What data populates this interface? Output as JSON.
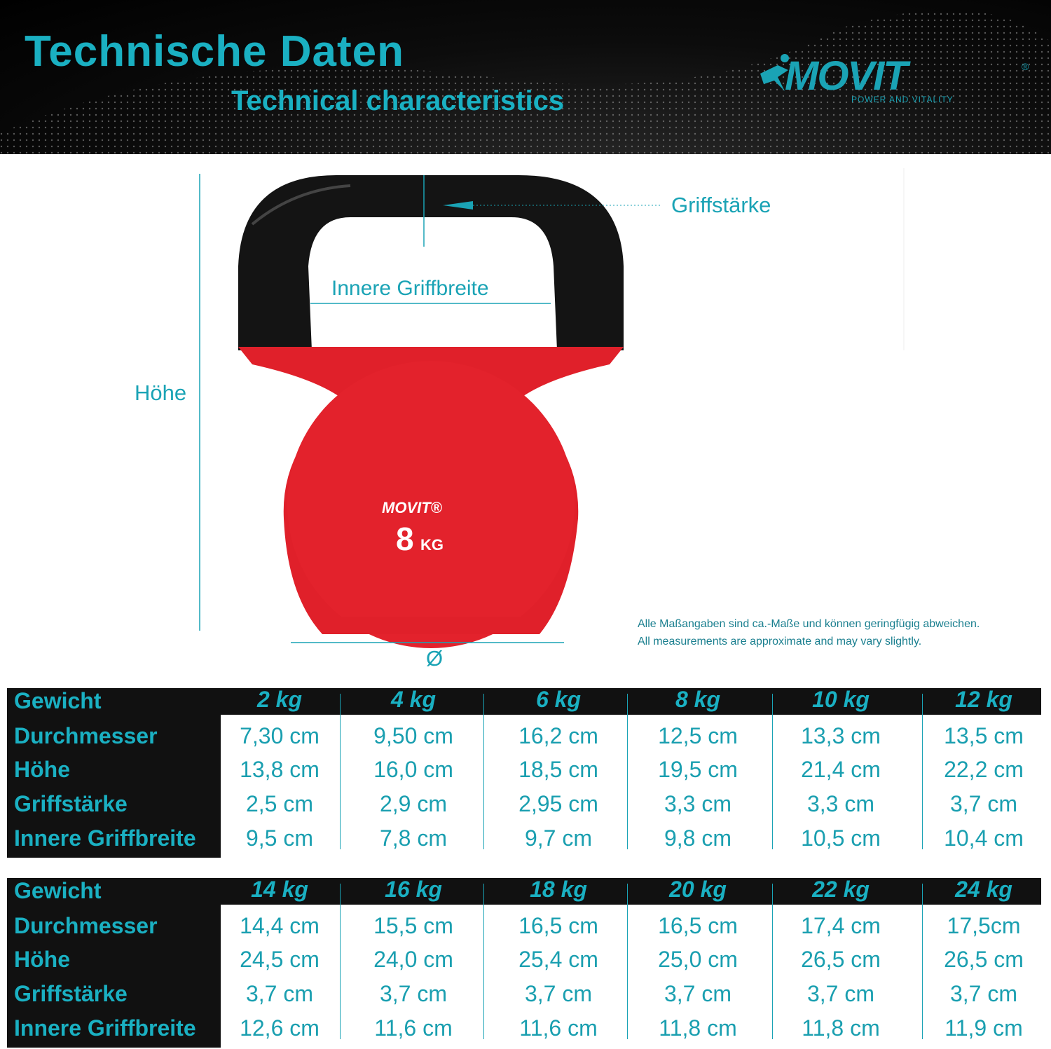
{
  "header": {
    "title_de": "Technische Daten",
    "title_en": "Technical characteristics",
    "logo": {
      "name": "MOVIT",
      "registered": "®",
      "tagline": "POWER AND VITALITY"
    }
  },
  "diagram": {
    "grip_thickness": "Griffstärke",
    "inner_grip_width": "Innere Griffbreite",
    "height": "Höhe",
    "diameter": "Ø",
    "kettlebell_brand": "MOVIT®",
    "kettlebell_weight": "8",
    "kettlebell_unit": "KG"
  },
  "notes": {
    "de": "Alle Maßangaben sind ca.-Maße und können geringfügig abweichen.",
    "en": "All measurements are approximate and may vary slightly."
  },
  "colors": {
    "accent": "#1aa3b5",
    "kettlebell_red": "#e0202a",
    "handle": "#111111"
  },
  "tables": [
    {
      "row_labels": [
        "Gewicht",
        "Durchmesser",
        "Höhe",
        "Griffstärke",
        "Innere Griffbreite"
      ],
      "weights": [
        "2 kg",
        "4 kg",
        "6 kg",
        "8 kg",
        "10 kg",
        "12 kg"
      ],
      "rows": [
        [
          "7,30 cm",
          "9,50 cm",
          "16,2 cm",
          "12,5 cm",
          "13,3 cm",
          "13,5 cm"
        ],
        [
          "13,8 cm",
          "16,0 cm",
          "18,5 cm",
          "19,5 cm",
          "21,4 cm",
          "22,2 cm"
        ],
        [
          "2,5 cm",
          "2,9 cm",
          "2,95 cm",
          "3,3 cm",
          "3,3 cm",
          "3,7 cm"
        ],
        [
          "9,5 cm",
          "7,8 cm",
          "9,7 cm",
          "9,8 cm",
          "10,5 cm",
          "10,4 cm"
        ]
      ]
    },
    {
      "row_labels": [
        "Gewicht",
        "Durchmesser",
        "Höhe",
        "Griffstärke",
        "Innere Griffbreite"
      ],
      "weights": [
        "14 kg",
        "16 kg",
        "18 kg",
        "20 kg",
        "22 kg",
        "24 kg"
      ],
      "rows": [
        [
          "14,4 cm",
          "15,5 cm",
          "16,5 cm",
          "16,5 cm",
          "17,4 cm",
          "17,5cm"
        ],
        [
          "24,5 cm",
          "24,0 cm",
          "25,4 cm",
          "25,0 cm",
          "26,5 cm",
          "26,5 cm"
        ],
        [
          "3,7 cm",
          "3,7 cm",
          "3,7 cm",
          "3,7 cm",
          "3,7 cm",
          "3,7 cm"
        ],
        [
          "12,6 cm",
          "11,6 cm",
          "11,6 cm",
          "11,8 cm",
          "11,8 cm",
          "11,9 cm"
        ]
      ]
    }
  ]
}
